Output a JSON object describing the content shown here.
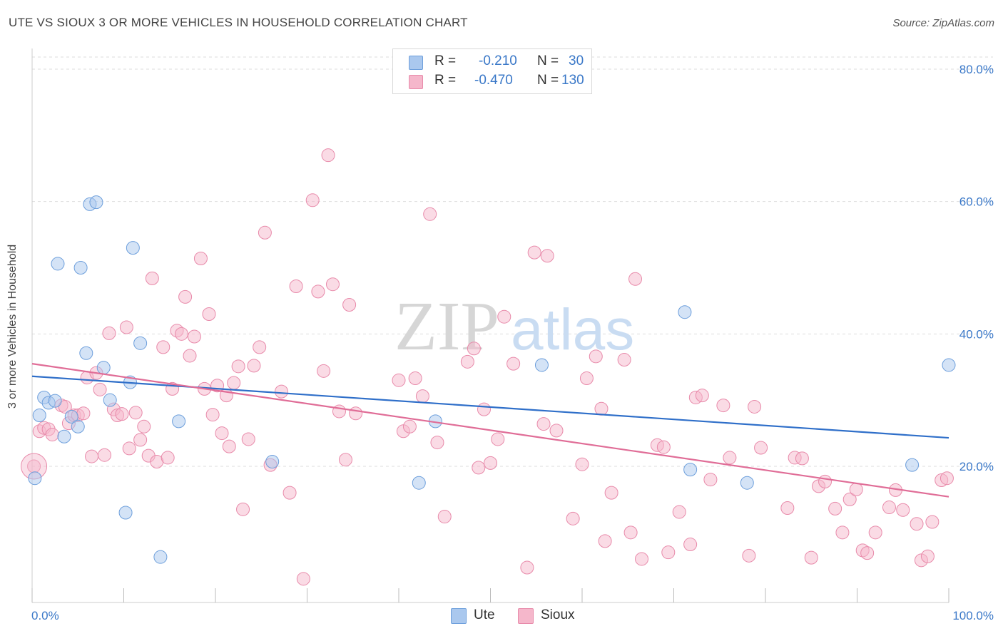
{
  "title": "UTE VS SIOUX 3 OR MORE VEHICLES IN HOUSEHOLD CORRELATION CHART",
  "source": "Source: ZipAtlas.com",
  "watermark": {
    "zip": "ZIP",
    "atlas": "atlas"
  },
  "legend": {
    "ute": {
      "r_label": "R =",
      "r_value": "-0.210",
      "n_label": "N =",
      "n_value": "30"
    },
    "sioux": {
      "r_label": "R =",
      "r_value": "-0.470",
      "n_label": "N =",
      "n_value": "130"
    }
  },
  "bottom_legend": {
    "ute": "Ute",
    "sioux": "Sioux"
  },
  "colors": {
    "ute_fill": "#aac8ee",
    "ute_stroke": "#6d9fdc",
    "ute_line": "#2f6fc9",
    "sioux_fill": "#f5b7cb",
    "sioux_stroke": "#e88aaa",
    "sioux_line": "#e06d97",
    "axis_text": "#3a78c8",
    "grid": "#dddddd"
  },
  "chart_data": {
    "type": "scatter",
    "title": "UTE VS SIOUX 3 OR MORE VEHICLES IN HOUSEHOLD CORRELATION CHART",
    "xlabel": "",
    "ylabel": "3 or more Vehicles in Household",
    "xlim": [
      0,
      100
    ],
    "ylim": [
      0,
      82
    ],
    "x_tick_labels": [
      "0.0%",
      "100.0%"
    ],
    "y_ticks": [
      20,
      40,
      60,
      80
    ],
    "y_tick_labels": [
      "20.0%",
      "40.0%",
      "60.0%",
      "80.0%"
    ],
    "grid": true,
    "series": [
      {
        "name": "Ute",
        "r": -0.21,
        "n": 30,
        "trend": [
          [
            0,
            33.6
          ],
          [
            100,
            24.3
          ]
        ],
        "points": [
          [
            0.3,
            18.2
          ],
          [
            0.8,
            27.7
          ],
          [
            1.3,
            30.4
          ],
          [
            1.8,
            29.6
          ],
          [
            2.5,
            29.9
          ],
          [
            2.8,
            50.6
          ],
          [
            3.5,
            24.5
          ],
          [
            4.3,
            27.5
          ],
          [
            5.0,
            26.0
          ],
          [
            5.3,
            50.0
          ],
          [
            5.9,
            37.1
          ],
          [
            6.3,
            59.6
          ],
          [
            7.0,
            59.9
          ],
          [
            7.8,
            34.9
          ],
          [
            8.5,
            30.0
          ],
          [
            10.2,
            13.0
          ],
          [
            10.7,
            32.7
          ],
          [
            11.0,
            53.0
          ],
          [
            11.8,
            38.6
          ],
          [
            14.0,
            6.3
          ],
          [
            16.0,
            26.8
          ],
          [
            26.2,
            20.7
          ],
          [
            42.2,
            17.5
          ],
          [
            44.0,
            26.8
          ],
          [
            55.6,
            35.3
          ],
          [
            71.2,
            43.3
          ],
          [
            71.8,
            19.5
          ],
          [
            78.0,
            17.5
          ],
          [
            96.0,
            20.2
          ],
          [
            100.0,
            35.3
          ]
        ]
      },
      {
        "name": "Sioux",
        "r": -0.47,
        "n": 130,
        "trend": [
          [
            0,
            35.5
          ],
          [
            100,
            15.4
          ]
        ],
        "points": [
          [
            0.2,
            20.0
          ],
          [
            0.8,
            25.3
          ],
          [
            1.3,
            25.8
          ],
          [
            1.8,
            25.6
          ],
          [
            2.2,
            24.8
          ],
          [
            3.2,
            29.2
          ],
          [
            3.6,
            29.0
          ],
          [
            4.0,
            26.5
          ],
          [
            4.6,
            27.7
          ],
          [
            5.0,
            27.7
          ],
          [
            5.6,
            28.0
          ],
          [
            6.0,
            33.4
          ],
          [
            6.5,
            21.5
          ],
          [
            7.0,
            34.1
          ],
          [
            7.4,
            31.6
          ],
          [
            7.9,
            21.7
          ],
          [
            8.4,
            40.1
          ],
          [
            8.9,
            28.6
          ],
          [
            9.3,
            27.7
          ],
          [
            9.8,
            27.9
          ],
          [
            10.3,
            41.0
          ],
          [
            10.6,
            22.7
          ],
          [
            11.3,
            28.1
          ],
          [
            11.8,
            24.0
          ],
          [
            12.2,
            26.0
          ],
          [
            12.7,
            21.6
          ],
          [
            13.1,
            48.4
          ],
          [
            13.6,
            20.7
          ],
          [
            14.3,
            38.0
          ],
          [
            14.8,
            21.3
          ],
          [
            15.3,
            31.7
          ],
          [
            15.8,
            40.5
          ],
          [
            16.3,
            40.0
          ],
          [
            16.7,
            45.6
          ],
          [
            17.2,
            36.7
          ],
          [
            17.7,
            39.6
          ],
          [
            18.4,
            51.4
          ],
          [
            18.8,
            31.7
          ],
          [
            19.3,
            43.0
          ],
          [
            19.7,
            27.8
          ],
          [
            20.2,
            32.2
          ],
          [
            20.7,
            25.0
          ],
          [
            21.2,
            30.7
          ],
          [
            21.5,
            23.0
          ],
          [
            22.0,
            32.6
          ],
          [
            22.5,
            35.1
          ],
          [
            23.0,
            13.5
          ],
          [
            23.6,
            24.1
          ],
          [
            24.2,
            35.2
          ],
          [
            24.8,
            38.0
          ],
          [
            25.4,
            55.3
          ],
          [
            26.0,
            20.2
          ],
          [
            27.2,
            31.3
          ],
          [
            28.1,
            16.0
          ],
          [
            28.8,
            47.2
          ],
          [
            29.6,
            3.0
          ],
          [
            30.6,
            60.2
          ],
          [
            31.2,
            46.4
          ],
          [
            31.8,
            34.4
          ],
          [
            32.3,
            67.0
          ],
          [
            32.8,
            47.5
          ],
          [
            33.5,
            28.3
          ],
          [
            34.2,
            21.0
          ],
          [
            34.6,
            44.4
          ],
          [
            35.3,
            28.0
          ],
          [
            40.0,
            33.0
          ],
          [
            40.5,
            25.3
          ],
          [
            41.2,
            26.0
          ],
          [
            41.8,
            33.3
          ],
          [
            42.6,
            30.6
          ],
          [
            43.4,
            58.1
          ],
          [
            44.2,
            23.6
          ],
          [
            45.0,
            12.4
          ],
          [
            47.5,
            35.8
          ],
          [
            48.2,
            37.8
          ],
          [
            48.7,
            19.8
          ],
          [
            49.3,
            28.6
          ],
          [
            50.0,
            20.5
          ],
          [
            50.8,
            24.1
          ],
          [
            51.5,
            42.6
          ],
          [
            52.5,
            35.5
          ],
          [
            54.0,
            4.7
          ],
          [
            54.8,
            52.3
          ],
          [
            55.8,
            26.4
          ],
          [
            56.2,
            51.8
          ],
          [
            57.2,
            25.4
          ],
          [
            59.0,
            12.1
          ],
          [
            60.0,
            20.3
          ],
          [
            60.5,
            33.3
          ],
          [
            61.5,
            36.6
          ],
          [
            62.1,
            28.7
          ],
          [
            62.5,
            8.7
          ],
          [
            63.2,
            16.0
          ],
          [
            64.6,
            36.1
          ],
          [
            65.3,
            10.0
          ],
          [
            65.8,
            48.3
          ],
          [
            66.5,
            6.0
          ],
          [
            68.2,
            23.2
          ],
          [
            68.9,
            22.9
          ],
          [
            69.4,
            7.0
          ],
          [
            70.6,
            13.1
          ],
          [
            71.8,
            8.2
          ],
          [
            72.4,
            30.4
          ],
          [
            73.1,
            30.7
          ],
          [
            74.0,
            18.0
          ],
          [
            75.4,
            29.2
          ],
          [
            76.1,
            21.3
          ],
          [
            78.2,
            6.5
          ],
          [
            78.8,
            29.0
          ],
          [
            79.5,
            22.8
          ],
          [
            82.4,
            13.7
          ],
          [
            83.2,
            21.3
          ],
          [
            84.0,
            21.2
          ],
          [
            85.0,
            6.2
          ],
          [
            85.8,
            17.0
          ],
          [
            86.5,
            17.7
          ],
          [
            87.6,
            13.6
          ],
          [
            88.4,
            10.0
          ],
          [
            89.2,
            15.0
          ],
          [
            89.9,
            16.5
          ],
          [
            90.6,
            7.3
          ],
          [
            91.1,
            6.9
          ],
          [
            92.0,
            10.0
          ],
          [
            93.5,
            13.8
          ],
          [
            94.2,
            16.4
          ],
          [
            95.0,
            13.4
          ],
          [
            96.5,
            11.3
          ],
          [
            97.0,
            5.8
          ],
          [
            97.7,
            6.4
          ],
          [
            98.2,
            11.6
          ],
          [
            99.2,
            17.9
          ],
          [
            99.8,
            18.2
          ]
        ]
      }
    ]
  }
}
